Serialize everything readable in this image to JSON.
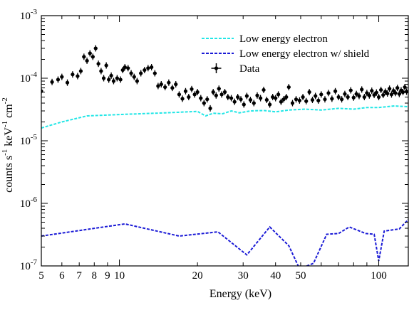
{
  "chart_data": {
    "type": "line",
    "xlabel": "Energy (keV)",
    "ylabel_parts": [
      "counts s",
      "-1",
      " keV",
      "-1",
      " cm",
      "-2"
    ],
    "xscale": "log",
    "yscale": "log",
    "xlim": [
      5,
      130
    ],
    "ylim": [
      1e-07,
      0.001
    ],
    "x_tick_labels": [
      {
        "value": 5,
        "label": "5"
      },
      {
        "value": 6,
        "label": "6"
      },
      {
        "value": 7,
        "label": "7"
      },
      {
        "value": 8,
        "label": "8"
      },
      {
        "value": 9,
        "label": "9"
      },
      {
        "value": 10,
        "label": "10"
      },
      {
        "value": 20,
        "label": "20"
      },
      {
        "value": 30,
        "label": "30"
      },
      {
        "value": 40,
        "label": "40"
      },
      {
        "value": 50,
        "label": "50"
      },
      {
        "value": 100,
        "label": "100"
      }
    ],
    "y_tick_labels": [
      {
        "value": 1e-07,
        "base": "10",
        "exp": "-7"
      },
      {
        "value": 1e-06,
        "base": "10",
        "exp": "-6"
      },
      {
        "value": 1e-05,
        "base": "10",
        "exp": "-5"
      },
      {
        "value": 0.0001,
        "base": "10",
        "exp": "-4"
      },
      {
        "value": 0.001,
        "base": "10",
        "exp": "-3"
      }
    ],
    "legend_position": "top-right",
    "series": [
      {
        "name": "Low energy electron",
        "style": "dashed",
        "color": "#22e6e6",
        "points": [
          [
            5.0,
            1.6e-05
          ],
          [
            6.0,
            2e-05
          ],
          [
            7.5,
            2.5e-05
          ],
          [
            10.5,
            2.65e-05
          ],
          [
            15,
            2.8e-05
          ],
          [
            20,
            2.95e-05
          ],
          [
            21.5,
            2.5e-05
          ],
          [
            23,
            2.75e-05
          ],
          [
            25,
            2.7e-05
          ],
          [
            27,
            3e-05
          ],
          [
            29,
            2.8e-05
          ],
          [
            32,
            3e-05
          ],
          [
            36,
            3.05e-05
          ],
          [
            40,
            2.9e-05
          ],
          [
            45,
            3.1e-05
          ],
          [
            52,
            3.2e-05
          ],
          [
            60,
            3.1e-05
          ],
          [
            70,
            3.3e-05
          ],
          [
            80,
            3.2e-05
          ],
          [
            90,
            3.4e-05
          ],
          [
            100,
            3.4e-05
          ],
          [
            115,
            3.6e-05
          ],
          [
            130,
            3.5e-05
          ]
        ]
      },
      {
        "name": "Low energy electron w/ shield",
        "style": "dashed",
        "color": "#1a1ad6",
        "points": [
          [
            5.0,
            3e-07
          ],
          [
            10.5,
            4.7e-07
          ],
          [
            17,
            3e-07
          ],
          [
            24,
            3.5e-07
          ],
          [
            31,
            1.5e-07
          ],
          [
            38,
            4.2e-07
          ],
          [
            45,
            2.1e-07
          ],
          [
            49.5,
            9e-08
          ],
          [
            56,
            1.1e-07
          ],
          [
            63,
            3.2e-07
          ],
          [
            70,
            3.3e-07
          ],
          [
            77,
            4.2e-07
          ],
          [
            89,
            3.3e-07
          ],
          [
            96,
            3.2e-07
          ],
          [
            100,
            1.2e-07
          ],
          [
            105,
            3.6e-07
          ],
          [
            120,
            3.9e-07
          ],
          [
            130,
            5.5e-07
          ]
        ]
      },
      {
        "name": "Data",
        "style": "errorbar",
        "color": "#000000",
        "points": [
          [
            5.0,
            6.2e-05
          ],
          [
            5.5,
            8.7e-05
          ],
          [
            5.8,
            9.5e-05
          ],
          [
            6.0,
            0.000105
          ],
          [
            6.3,
            8.5e-05
          ],
          [
            6.6,
            0.000115
          ],
          [
            6.9,
            0.000108
          ],
          [
            7.1,
            0.00013
          ],
          [
            7.3,
            0.00022
          ],
          [
            7.5,
            0.00019
          ],
          [
            7.7,
            0.00025
          ],
          [
            7.9,
            0.00022
          ],
          [
            8.1,
            0.0003
          ],
          [
            8.3,
            0.00017
          ],
          [
            8.5,
            0.00013
          ],
          [
            8.7,
            0.0001
          ],
          [
            8.9,
            0.00016
          ],
          [
            9.1,
            9.5e-05
          ],
          [
            9.3,
            0.00011
          ],
          [
            9.5,
            9e-05
          ],
          [
            9.8,
            0.0001
          ],
          [
            10.1,
            9.5e-05
          ],
          [
            10.3,
            0.000135
          ],
          [
            10.5,
            0.00015
          ],
          [
            10.8,
            0.000145
          ],
          [
            11.1,
            0.00012
          ],
          [
            11.4,
            0.000105
          ],
          [
            11.7,
            9e-05
          ],
          [
            12.1,
            0.00012
          ],
          [
            12.5,
            0.000135
          ],
          [
            12.9,
            0.000145
          ],
          [
            13.3,
            0.00015
          ],
          [
            13.7,
            0.00012
          ],
          [
            14.1,
            7.5e-05
          ],
          [
            14.5,
            8e-05
          ],
          [
            15.0,
            7.2e-05
          ],
          [
            15.5,
            8.5e-05
          ],
          [
            16.0,
            7e-05
          ],
          [
            16.5,
            8e-05
          ],
          [
            17.0,
            5.5e-05
          ],
          [
            17.5,
            4.7e-05
          ],
          [
            18.0,
            6.2e-05
          ],
          [
            18.5,
            5e-05
          ],
          [
            19.0,
            6.7e-05
          ],
          [
            19.5,
            5.5e-05
          ],
          [
            20.0,
            6e-05
          ],
          [
            20.6,
            4.8e-05
          ],
          [
            21.2,
            4e-05
          ],
          [
            21.8,
            4.6e-05
          ],
          [
            22.4,
            3.3e-05
          ],
          [
            23.0,
            6e-05
          ],
          [
            23.6,
            5.3e-05
          ],
          [
            24.2,
            6.8e-05
          ],
          [
            24.8,
            5.5e-05
          ],
          [
            25.5,
            6e-05
          ],
          [
            26.2,
            5e-05
          ],
          [
            27.0,
            4.8e-05
          ],
          [
            27.8,
            4.2e-05
          ],
          [
            28.6,
            5e-05
          ],
          [
            29.4,
            4.6e-05
          ],
          [
            30.2,
            3.8e-05
          ],
          [
            31.0,
            5.2e-05
          ],
          [
            32.0,
            4.5e-05
          ],
          [
            33.0,
            4e-05
          ],
          [
            34.0,
            5.3e-05
          ],
          [
            35.0,
            4.8e-05
          ],
          [
            36.0,
            6.5e-05
          ],
          [
            37.0,
            4.5e-05
          ],
          [
            38.0,
            3.8e-05
          ],
          [
            39.0,
            5e-05
          ],
          [
            40.0,
            4.8e-05
          ],
          [
            41.0,
            5.5e-05
          ],
          [
            42.0,
            4.2e-05
          ],
          [
            43.0,
            4.6e-05
          ],
          [
            44.0,
            5e-05
          ],
          [
            45.0,
            7.2e-05
          ],
          [
            46.5,
            4e-05
          ],
          [
            48.0,
            4.6e-05
          ],
          [
            49.5,
            4.4e-05
          ],
          [
            51.0,
            5e-05
          ],
          [
            52.5,
            4.3e-05
          ],
          [
            54.0,
            6e-05
          ],
          [
            55.5,
            4.5e-05
          ],
          [
            57.0,
            5.2e-05
          ],
          [
            58.5,
            4.4e-05
          ],
          [
            60.0,
            5.5e-05
          ],
          [
            62.0,
            4.6e-05
          ],
          [
            64.0,
            5.8e-05
          ],
          [
            66.0,
            4.7e-05
          ],
          [
            68.0,
            6.2e-05
          ],
          [
            70.0,
            5e-05
          ],
          [
            72.0,
            4.6e-05
          ],
          [
            74.0,
            5.6e-05
          ],
          [
            76.0,
            5e-05
          ],
          [
            78.0,
            6.4e-05
          ],
          [
            80.0,
            4.9e-05
          ],
          [
            82.0,
            5.6e-05
          ],
          [
            84.0,
            5.2e-05
          ],
          [
            86.0,
            6.6e-05
          ],
          [
            88.0,
            5e-05
          ],
          [
            90.0,
            5.8e-05
          ],
          [
            92.0,
            5.3e-05
          ],
          [
            94.0,
            6.3e-05
          ],
          [
            96.0,
            5.4e-05
          ],
          [
            98.0,
            5.9e-05
          ],
          [
            100.0,
            5e-05
          ],
          [
            102.0,
            6.5e-05
          ],
          [
            104.0,
            5.4e-05
          ],
          [
            106.0,
            6.1e-05
          ],
          [
            108.0,
            5.7e-05
          ],
          [
            110.0,
            6.8e-05
          ],
          [
            112.0,
            5.5e-05
          ],
          [
            114.0,
            6.3e-05
          ],
          [
            116.0,
            5.8e-05
          ],
          [
            118.0,
            7e-05
          ],
          [
            120.0,
            5.6e-05
          ],
          [
            122.0,
            6.4e-05
          ],
          [
            124.0,
            6e-05
          ],
          [
            126.0,
            7.2e-05
          ],
          [
            128.0,
            6.1e-05
          ]
        ]
      }
    ]
  }
}
